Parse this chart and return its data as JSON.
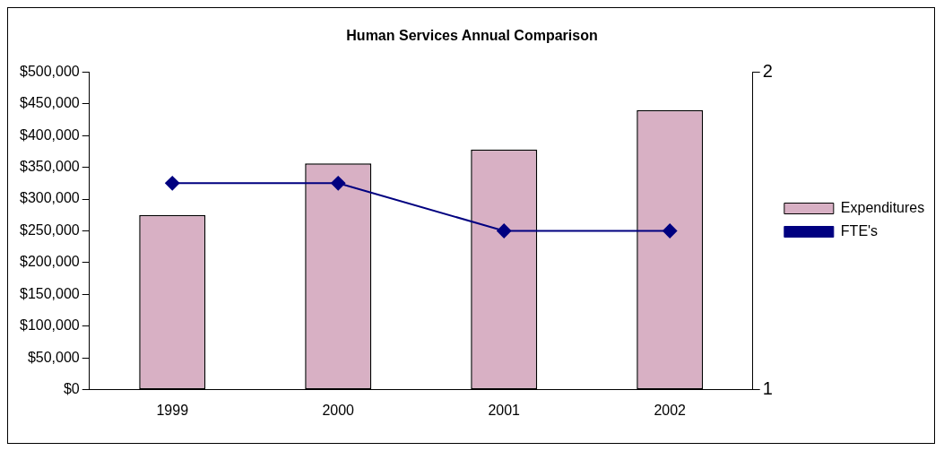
{
  "chart_data": {
    "type": "bar",
    "title": "Human Services Annual Comparison",
    "categories": [
      "1999",
      "2000",
      "2001",
      "2002"
    ],
    "series": [
      {
        "name": "Expenditures",
        "color": "#d8b0c4",
        "values": [
          275000,
          356000,
          378000,
          440000
        ]
      },
      {
        "name": "FTE's",
        "type": "line",
        "axis": "y2",
        "color": "#000080",
        "values": [
          1.65,
          1.65,
          1.5,
          1.5
        ]
      }
    ],
    "ylim": [
      0,
      500000
    ],
    "yticks": [
      {
        "value": 0,
        "label": "$0"
      },
      {
        "value": 50000,
        "label": "$50,000"
      },
      {
        "value": 100000,
        "label": "$100,000"
      },
      {
        "value": 150000,
        "label": "$150,000"
      },
      {
        "value": 200000,
        "label": "$200,000"
      },
      {
        "value": 250000,
        "label": "$250,000"
      },
      {
        "value": 300000,
        "label": "$300,000"
      },
      {
        "value": 350000,
        "label": "$350,000"
      },
      {
        "value": 400000,
        "label": "$400,000"
      },
      {
        "value": 450000,
        "label": "$450,000"
      },
      {
        "value": 500000,
        "label": "$500,000"
      }
    ],
    "y2lim": [
      1,
      2
    ],
    "y2ticks": [
      1,
      2
    ],
    "grid": false,
    "legend": "right",
    "marker": "diamond"
  }
}
